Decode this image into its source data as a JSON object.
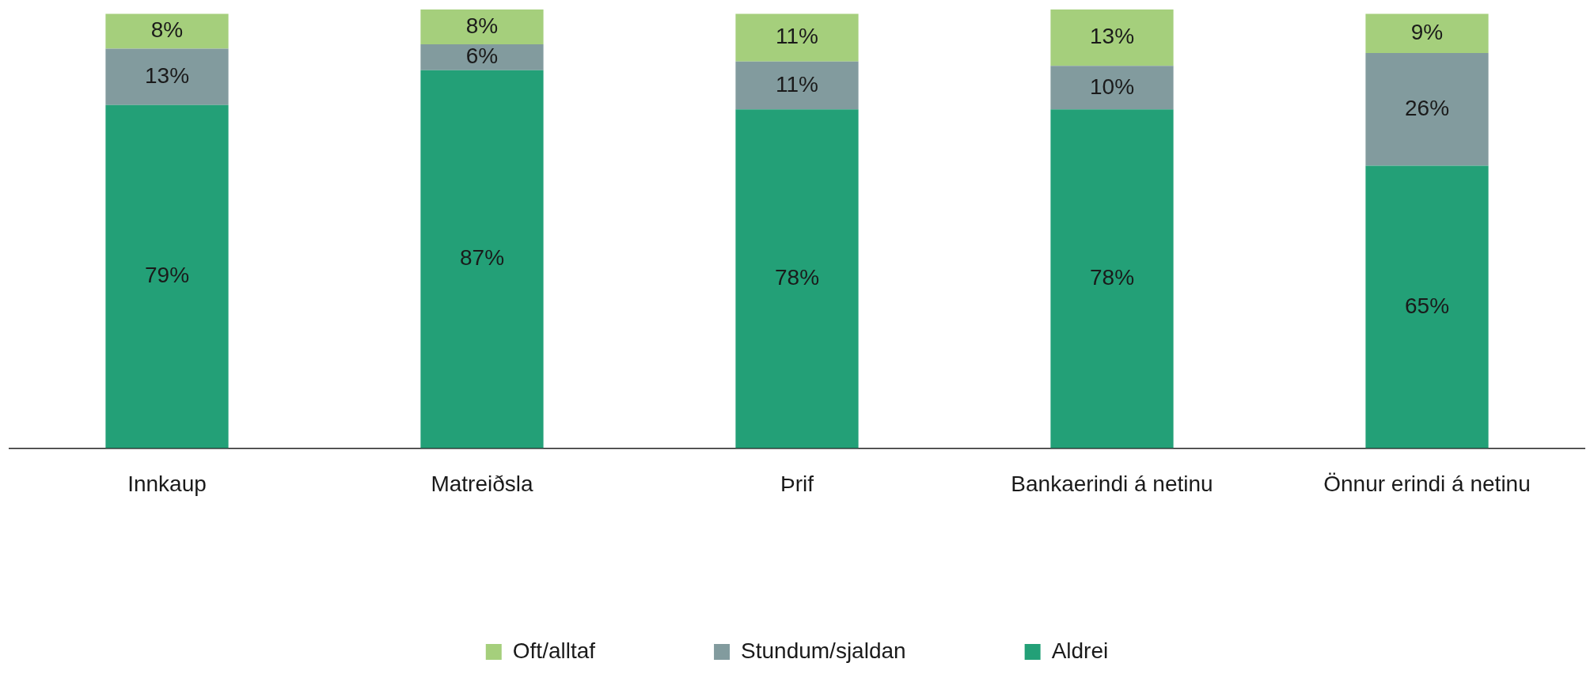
{
  "chart_data": {
    "type": "bar",
    "stacked": true,
    "legend": "bottom",
    "grid": false,
    "categories": [
      "Innkaup",
      "Matreiðsla",
      "Þrif",
      "Bankaerindi á netinu",
      "Önnur erindi á netinu"
    ],
    "series": [
      {
        "name": "Aldrei",
        "color": "#23a077",
        "values": [
          79,
          87,
          78,
          78,
          65
        ],
        "value_labels": [
          "79%",
          "87%",
          "78%",
          "78%",
          "65%"
        ]
      },
      {
        "name": "Stundum/sjaldan",
        "color": "#829b9e",
        "values": [
          13,
          6,
          11,
          10,
          26
        ],
        "value_labels": [
          "13%",
          "6%",
          "11%",
          "10%",
          "26%"
        ]
      },
      {
        "name": "Oft/alltaf",
        "color": "#a5cf7c",
        "values": [
          8,
          8,
          11,
          13,
          9
        ],
        "value_labels": [
          "8%",
          "8%",
          "11%",
          "13%",
          "9%"
        ]
      }
    ]
  }
}
